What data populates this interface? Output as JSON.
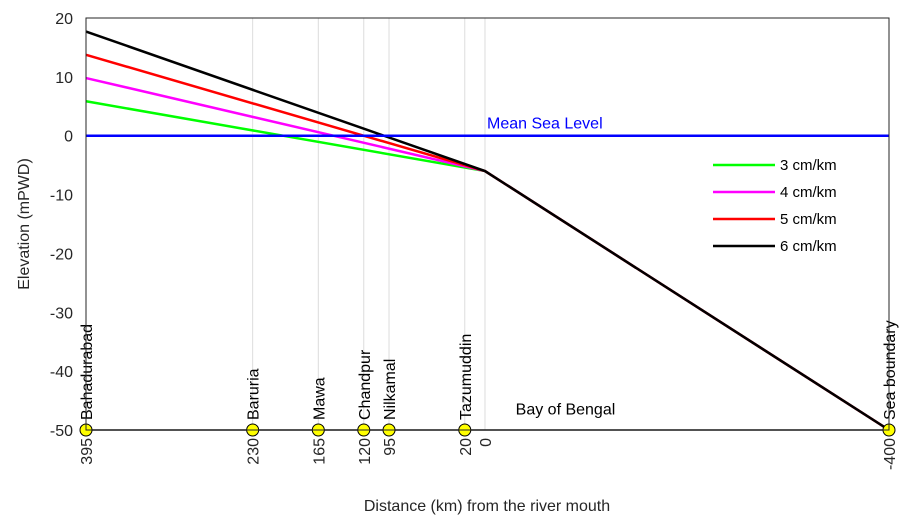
{
  "chart_data": {
    "type": "line",
    "title": "",
    "xlabel": "Distance (km) from the river mouth",
    "ylabel": "Elevation (mPWD)",
    "x_axis": "distance from river mouth, positive upstream, negative seaward",
    "xlim": [
      395,
      -400
    ],
    "ylim": [
      -50,
      20
    ],
    "yticks": [
      20,
      10,
      0,
      -10,
      -20,
      -30,
      -40,
      -50
    ],
    "grid": "vertical lines at stations",
    "series": [
      {
        "name": "3 cm/km",
        "color": "#00ff00",
        "x": [
          395,
          0,
          -400
        ],
        "y": [
          5.85,
          -6.0,
          -50
        ]
      },
      {
        "name": "4 cm/km",
        "color": "#ff00ff",
        "x": [
          395,
          0,
          -400
        ],
        "y": [
          9.8,
          -6.0,
          -50
        ]
      },
      {
        "name": "5 cm/km",
        "color": "#ff0000",
        "x": [
          395,
          0,
          -400
        ],
        "y": [
          13.75,
          -6.0,
          -50
        ]
      },
      {
        "name": "6 cm/km",
        "color": "#000000",
        "x": [
          395,
          0,
          -400
        ],
        "y": [
          17.7,
          -6.0,
          -50
        ]
      }
    ],
    "reference_line": {
      "label": "Mean Sea Level",
      "y": 0,
      "color": "#0000ff"
    },
    "stations": [
      {
        "name": "Bahadurabad",
        "x": 395,
        "tick": "395"
      },
      {
        "name": "Baruria",
        "x": 230,
        "tick": "230"
      },
      {
        "name": "Mawa",
        "x": 165,
        "tick": "165"
      },
      {
        "name": "Chandpur",
        "x": 120,
        "tick": "120"
      },
      {
        "name": "Nilkamal",
        "x": 95,
        "tick": "95"
      },
      {
        "name": "Tazumuddin",
        "x": 20,
        "tick": "20"
      },
      {
        "name": "",
        "x": 0,
        "tick": "0"
      },
      {
        "name": "Sea boundary",
        "x": -400,
        "tick": "-400"
      }
    ],
    "annotations": [
      {
        "text": "Bay of Bengal",
        "x": -50,
        "y": -46.5
      }
    ],
    "legend": {
      "placement": "right"
    },
    "marker_color": "#ffff00"
  }
}
